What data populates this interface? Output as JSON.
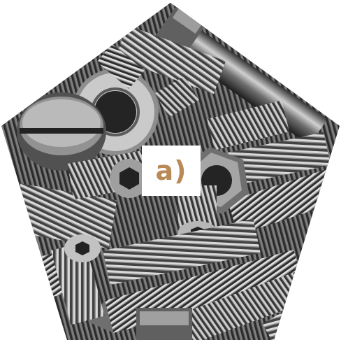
{
  "panel": {
    "label": "a)",
    "label_color": "#b98a55",
    "background": "#ffffff"
  },
  "photo": {
    "subject_icon": "screws-and-bolts-photo",
    "tones": [
      "#101010",
      "#3a3a3a",
      "#6e6e6e",
      "#a8a8a8",
      "#dcdcdc"
    ]
  }
}
